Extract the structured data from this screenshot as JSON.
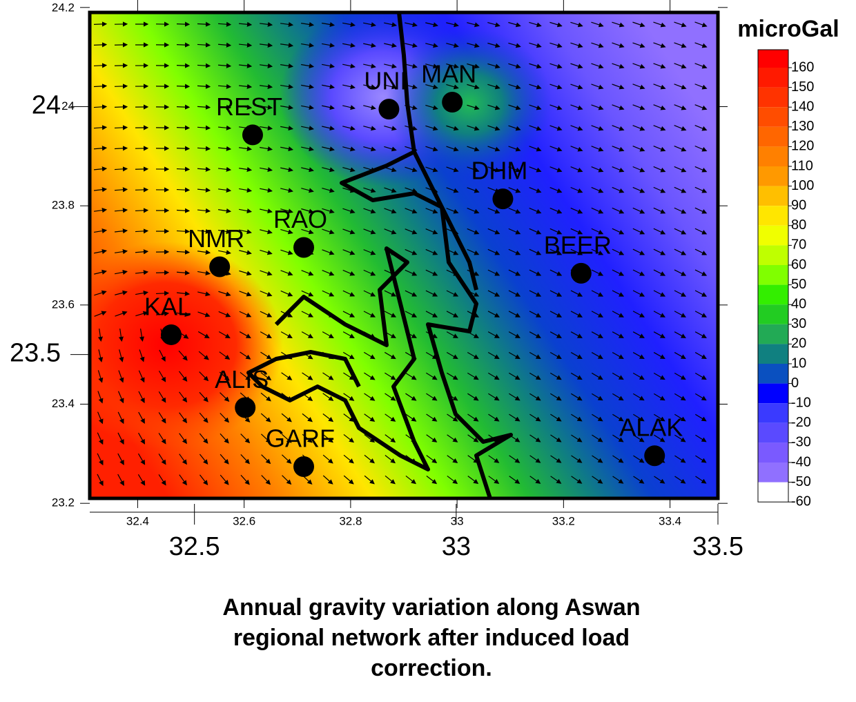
{
  "map": {
    "title": "microGal",
    "xlim": [
      32.31,
      33.49
    ],
    "ylim": [
      23.21,
      24.19
    ],
    "xticks": [
      32.4,
      32.6,
      32.8,
      33,
      33.2,
      33.4
    ],
    "yticks": [
      23.2,
      23.4,
      23.6,
      23.8,
      24,
      24.2
    ],
    "outer_xlim": [
      32.3,
      33.5
    ],
    "outer_xticks": [
      32.5,
      33,
      33.5
    ],
    "outer_yticks": [
      23.5,
      24
    ],
    "stations": [
      {
        "name": "UNI",
        "lon": 32.872,
        "lat": 23.995
      },
      {
        "name": "MAN",
        "lon": 32.991,
        "lat": 24.009
      },
      {
        "name": "REST",
        "lon": 32.616,
        "lat": 23.943
      },
      {
        "name": "DHM",
        "lon": 33.086,
        "lat": 23.814
      },
      {
        "name": "RAO",
        "lon": 32.712,
        "lat": 23.716
      },
      {
        "name": "NMR",
        "lon": 32.554,
        "lat": 23.677
      },
      {
        "name": "BEER",
        "lon": 33.233,
        "lat": 23.664
      },
      {
        "name": "KAL",
        "lon": 32.463,
        "lat": 23.54
      },
      {
        "name": "ALIS",
        "lon": 32.602,
        "lat": 23.393
      },
      {
        "name": "GARF",
        "lon": 32.712,
        "lat": 23.274
      },
      {
        "name": "ALAK",
        "lon": 33.371,
        "lat": 23.296
      }
    ],
    "colorbar": {
      "levels": [
        160,
        150,
        140,
        130,
        120,
        110,
        100,
        90,
        80,
        70,
        60,
        50,
        40,
        30,
        20,
        10,
        0,
        -10,
        -20,
        -30,
        -40,
        -50,
        -60
      ],
      "colors": [
        "#ff0000",
        "#ff1a00",
        "#ff3300",
        "#ff4d00",
        "#ff6600",
        "#ff8000",
        "#ff9900",
        "#ffbf00",
        "#ffe600",
        "#f0ff00",
        "#bfff00",
        "#80ff00",
        "#33ee00",
        "#22cc22",
        "#22aa55",
        "#108080",
        "#0a50c0",
        "#0000ff",
        "#3a3aff",
        "#5a4aff",
        "#7a5aff",
        "#9070ff"
      ]
    }
  },
  "caption": [
    "Annual gravity variation along Aswan",
    "regional network after induced load",
    "correction."
  ]
}
